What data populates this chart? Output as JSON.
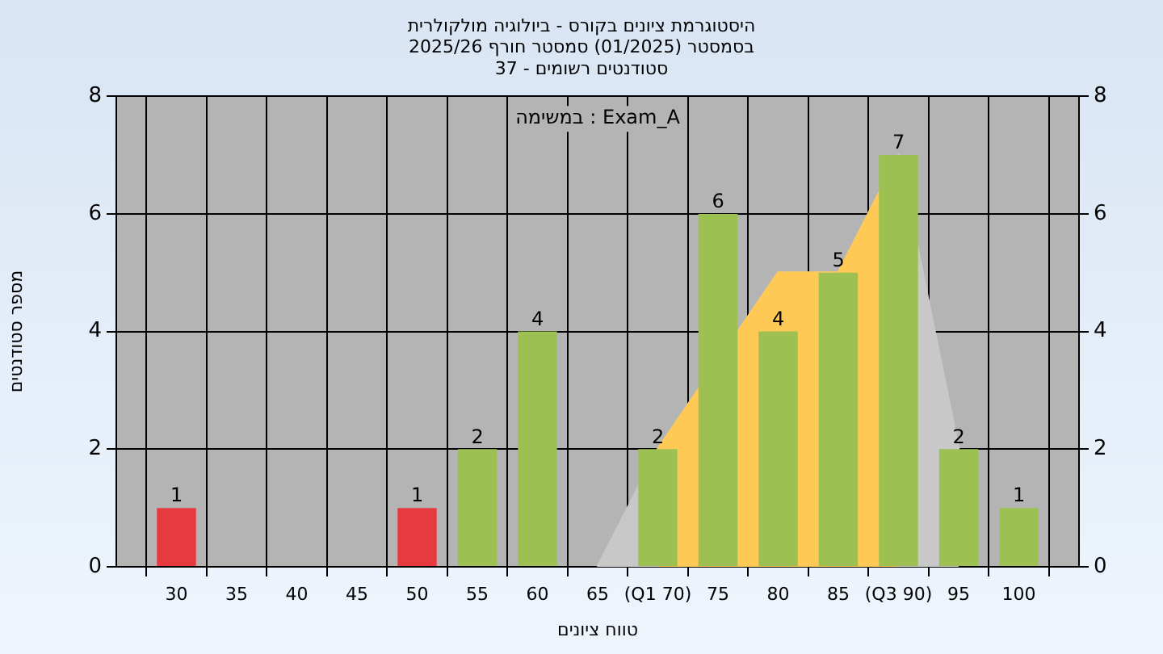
{
  "chart_data": {
    "type": "bar",
    "title": "היסטוגרמת ציונים בקורס - ביולוגיה מולקולרית",
    "subtitle": "בסמסטר (01/2025) סמסטר חורף 2025/26\nסטודנטים רשומים - 37",
    "xlabel": "טווח ציונים",
    "ylabel": "מספר סטודנטים",
    "annotations": [
      "במשימה : Exam_A"
    ],
    "xlim": [
      25,
      105
    ],
    "xticks": [
      30,
      35,
      40,
      45,
      50,
      55,
      60,
      65,
      {
        "value": 70,
        "label": "(Q1 70)"
      },
      75,
      80,
      85,
      {
        "value": 90,
        "label": "(Q3 90)"
      },
      95,
      100
    ],
    "ylim": [
      0,
      8
    ],
    "yticks": [
      0,
      2,
      4,
      6,
      8
    ],
    "y2lim": [
      0,
      8
    ],
    "y2ticks": [
      0,
      2,
      4,
      6,
      8
    ],
    "grid": true,
    "legend": false,
    "series": [
      {
        "type": "area",
        "color": "#c8c8c8",
        "x": [
          65,
          70,
          75,
          80,
          85,
          90,
          95
        ],
        "values": [
          0,
          2,
          null,
          5,
          5,
          7,
          2
        ]
      },
      {
        "type": "area",
        "color": "#ffc955",
        "x": [
          70,
          75,
          80,
          85,
          90
        ],
        "values": [
          2,
          null,
          5,
          5,
          7
        ]
      },
      {
        "x": [
          30,
          50,
          55,
          60,
          70,
          75,
          80,
          85,
          90,
          95,
          100
        ],
        "values": [
          1,
          1,
          2,
          4,
          2,
          6,
          4,
          5,
          7,
          2,
          1
        ],
        "colors": [
          "#e63a3f",
          "#e63a3f",
          "#9cc152",
          "#9cc152",
          "#9cc152",
          "#9cc152",
          "#9cc152",
          "#9cc152",
          "#9cc152",
          "#9cc152",
          "#9cc152"
        ],
        "value_labels": [
          "1",
          "1",
          "2",
          "4",
          "2",
          "6",
          "4",
          "5",
          "7",
          "2",
          "1"
        ]
      }
    ]
  }
}
